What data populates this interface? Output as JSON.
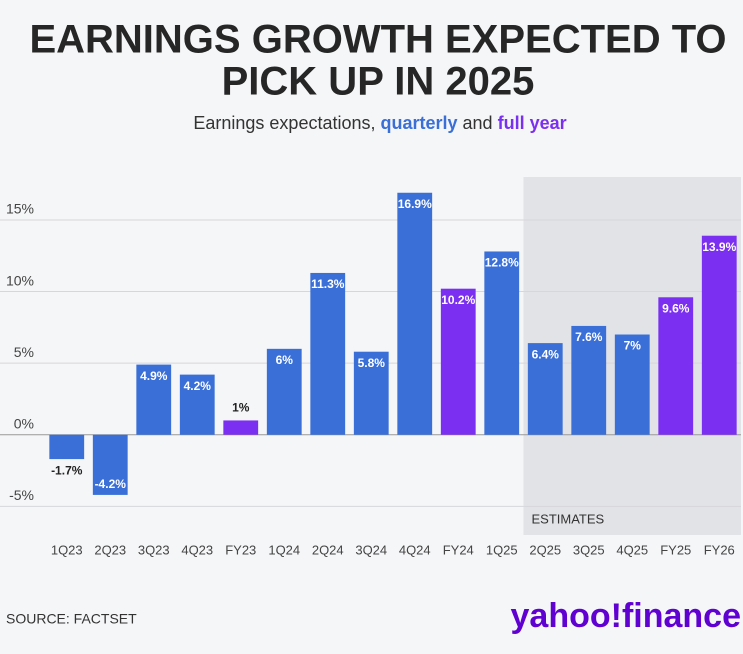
{
  "chart_data": {
    "type": "bar",
    "title": [
      "EARNINGS GROWTH EXPECTED TO",
      "PICK UP IN 2025"
    ],
    "subtitle": [
      "Earnings expectations, ",
      "quarterly",
      " and ",
      "full year"
    ],
    "subtitle_colors": [
      "#333333",
      "#3a6fd8",
      "#333333",
      "#7b2ff0"
    ],
    "categories": [
      "1Q23",
      "2Q23",
      "3Q23",
      "4Q23",
      "FY23",
      "1Q24",
      "2Q24",
      "3Q24",
      "4Q24",
      "FY24",
      "1Q25",
      "2Q25",
      "3Q25",
      "4Q25",
      "FY25",
      "FY26"
    ],
    "values": [
      -1.7,
      -4.2,
      4.9,
      4.2,
      1,
      6,
      11.3,
      5.8,
      16.9,
      10.2,
      12.8,
      6.4,
      7.6,
      7,
      9.6,
      13.9
    ],
    "value_labels": [
      "-1.7%",
      "-4.2%",
      "4.9%",
      "4.2%",
      "1%",
      "6%",
      "11.3%",
      "5.8%",
      "16.9%",
      "10.2%",
      "12.8%",
      "6.4%",
      "7.6%",
      "7%",
      "9.6%",
      "13.9%"
    ],
    "colors": [
      "#3a6fd8",
      "#3a6fd8",
      "#3a6fd8",
      "#3a6fd8",
      "#7b2ff0",
      "#3a6fd8",
      "#3a6fd8",
      "#3a6fd8",
      "#3a6fd8",
      "#7b2ff0",
      "#3a6fd8",
      "#3a6fd8",
      "#3a6fd8",
      "#3a6fd8",
      "#7b2ff0",
      "#7b2ff0"
    ],
    "ylim": [
      -7,
      18
    ],
    "yticks": [
      {
        "value": -5,
        "label": "-5%"
      },
      {
        "value": 0,
        "label": "0%"
      },
      {
        "value": 5,
        "label": "5%"
      },
      {
        "value": 10,
        "label": "10%"
      },
      {
        "value": 15,
        "label": "15%"
      }
    ],
    "grid": true,
    "shaded_from": "2Q25",
    "shaded_label": "ESTIMATES",
    "source": "SOURCE: FACTSET",
    "logo": "yahoo!finance"
  }
}
